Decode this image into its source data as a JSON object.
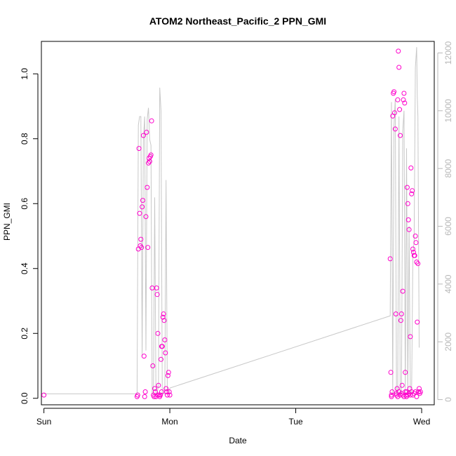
{
  "chart_data": {
    "type": "scatter",
    "title": "ATOM2 Northeast_Pacific_2 PPN_GMI",
    "xlabel": "Date",
    "ylabel": "PPN_GMI",
    "y2label": "",
    "x_unit": "days",
    "xlim": [
      -0.02,
      3.1
    ],
    "ylim": [
      -0.02,
      1.1
    ],
    "y2lim": [
      -180,
      12400
    ],
    "x_ticks": [
      {
        "value": 0,
        "label": "Sun"
      },
      {
        "value": 1,
        "label": "Mon"
      },
      {
        "value": 2,
        "label": "Tue"
      },
      {
        "value": 3,
        "label": "Wed"
      }
    ],
    "y_ticks": [
      0.0,
      0.2,
      0.4,
      0.6,
      0.8,
      1.0
    ],
    "y_tick_labels": [
      "0.0",
      "0.2",
      "0.4",
      "0.6",
      "0.8",
      "1.0"
    ],
    "y2_ticks": [
      0,
      2000,
      4000,
      6000,
      8000,
      10000,
      12000
    ],
    "y2_tick_labels": [
      "0",
      "2000",
      "4000",
      "6000",
      "8000",
      "10000",
      "12000"
    ],
    "grid": false,
    "series": [
      {
        "color": "#ff00cc",
        "marker": "open-circle",
        "points": [
          [
            0.0,
            0.01
          ],
          [
            0.74,
            0.005
          ],
          [
            0.745,
            0.01
          ],
          [
            0.75,
            0.46
          ],
          [
            0.755,
            0.77
          ],
          [
            0.76,
            0.57
          ],
          [
            0.765,
            0.47
          ],
          [
            0.77,
            0.49
          ],
          [
            0.775,
            0.465
          ],
          [
            0.78,
            0.59
          ],
          [
            0.785,
            0.61
          ],
          [
            0.79,
            0.81
          ],
          [
            0.795,
            0.13
          ],
          [
            0.8,
            0.005
          ],
          [
            0.805,
            0.02
          ],
          [
            0.81,
            0.56
          ],
          [
            0.815,
            0.82
          ],
          [
            0.82,
            0.65
          ],
          [
            0.825,
            0.465
          ],
          [
            0.83,
            0.725
          ],
          [
            0.835,
            0.74
          ],
          [
            0.84,
            0.73
          ],
          [
            0.845,
            0.745
          ],
          [
            0.85,
            0.75
          ],
          [
            0.855,
            0.855
          ],
          [
            0.86,
            0.34
          ],
          [
            0.865,
            0.1
          ],
          [
            0.87,
            0.01
          ],
          [
            0.875,
            0.005
          ],
          [
            0.88,
            0.03
          ],
          [
            0.885,
            0.02
          ],
          [
            0.89,
            0.005
          ],
          [
            0.895,
            0.34
          ],
          [
            0.9,
            0.32
          ],
          [
            0.905,
            0.2
          ],
          [
            0.91,
            0.04
          ],
          [
            0.915,
            0.01
          ],
          [
            0.92,
            0.005
          ],
          [
            0.925,
            0.01
          ],
          [
            0.93,
            0.12
          ],
          [
            0.935,
            0.16
          ],
          [
            0.94,
            0.16
          ],
          [
            0.945,
            0.25
          ],
          [
            0.95,
            0.26
          ],
          [
            0.955,
            0.24
          ],
          [
            0.96,
            0.18
          ],
          [
            0.965,
            0.14
          ],
          [
            0.97,
            0.03
          ],
          [
            0.975,
            0.02
          ],
          [
            0.98,
            0.01
          ],
          [
            0.985,
            0.07
          ],
          [
            0.99,
            0.08
          ],
          [
            0.995,
            0.02
          ],
          [
            1.0,
            0.01
          ],
          [
            0.905,
            0.01
          ],
          [
            0.935,
            0.02
          ],
          [
            2.75,
            0.43
          ],
          [
            2.755,
            0.08
          ],
          [
            2.76,
            0.01
          ],
          [
            2.765,
            0.02
          ],
          [
            2.77,
            0.87
          ],
          [
            2.775,
            0.94
          ],
          [
            2.78,
            0.945
          ],
          [
            2.785,
            0.88
          ],
          [
            2.79,
            0.83
          ],
          [
            2.795,
            0.26
          ],
          [
            2.8,
            0.01
          ],
          [
            2.805,
            0.03
          ],
          [
            2.81,
            0.92
          ],
          [
            2.815,
            1.07
          ],
          [
            2.82,
            1.02
          ],
          [
            2.825,
            0.89
          ],
          [
            2.83,
            0.81
          ],
          [
            2.835,
            0.24
          ],
          [
            2.84,
            0.26
          ],
          [
            2.845,
            0.04
          ],
          [
            2.85,
            0.33
          ],
          [
            2.855,
            0.92
          ],
          [
            2.86,
            0.94
          ],
          [
            2.865,
            0.91
          ],
          [
            2.87,
            0.08
          ],
          [
            2.875,
            0.01
          ],
          [
            2.88,
            0.02
          ],
          [
            2.885,
            0.65
          ],
          [
            2.89,
            0.6
          ],
          [
            2.895,
            0.55
          ],
          [
            2.9,
            0.52
          ],
          [
            2.905,
            0.03
          ],
          [
            2.91,
            0.19
          ],
          [
            2.915,
            0.71
          ],
          [
            2.92,
            0.63
          ],
          [
            2.925,
            0.64
          ],
          [
            2.93,
            0.46
          ],
          [
            2.935,
            0.45
          ],
          [
            2.94,
            0.44
          ],
          [
            2.945,
            0.44
          ],
          [
            2.95,
            0.5
          ],
          [
            2.955,
            0.48
          ],
          [
            2.96,
            0.42
          ],
          [
            2.965,
            0.235
          ],
          [
            2.97,
            0.415
          ],
          [
            2.975,
            0.02
          ],
          [
            2.98,
            0.03
          ],
          [
            2.985,
            0.015
          ],
          [
            2.99,
            0.02
          ],
          [
            2.85,
            0.01
          ],
          [
            2.86,
            0.005
          ],
          [
            2.87,
            0.02
          ],
          [
            2.88,
            0.005
          ],
          [
            2.89,
            0.01
          ],
          [
            2.9,
            0.015
          ],
          [
            2.91,
            0.01
          ],
          [
            2.92,
            0.02
          ],
          [
            2.93,
            0.01
          ],
          [
            2.94,
            0.015
          ],
          [
            2.95,
            0.02
          ],
          [
            2.96,
            0.005
          ],
          [
            2.8,
            0.015
          ],
          [
            2.81,
            0.005
          ],
          [
            2.82,
            0.02
          ],
          [
            2.83,
            0.01
          ],
          [
            2.84,
            0.015
          ],
          [
            2.76,
            0.005
          ]
        ]
      },
      {
        "color": "#c8c8c8",
        "marker": "line",
        "axis": "right",
        "points": [
          [
            0.0,
            200
          ],
          [
            0.74,
            200
          ],
          [
            0.75,
            9500
          ],
          [
            0.76,
            9800
          ],
          [
            0.77,
            9800
          ],
          [
            0.78,
            1500
          ],
          [
            0.79,
            9000
          ],
          [
            0.8,
            9800
          ],
          [
            0.81,
            1700
          ],
          [
            0.82,
            9700
          ],
          [
            0.83,
            10100
          ],
          [
            0.84,
            9000
          ],
          [
            0.85,
            8800
          ],
          [
            0.86,
            200
          ],
          [
            0.87,
            200
          ],
          [
            0.88,
            7000
          ],
          [
            0.89,
            200
          ],
          [
            0.9,
            200
          ],
          [
            0.91,
            500
          ],
          [
            0.92,
            10800
          ],
          [
            0.93,
            10000
          ],
          [
            0.94,
            200
          ],
          [
            0.95,
            200
          ],
          [
            0.96,
            200
          ],
          [
            0.97,
            7600
          ],
          [
            0.98,
            200
          ],
          [
            0.99,
            200
          ],
          [
            1.0,
            400
          ],
          [
            1.0,
            400
          ],
          [
            2.75,
            2900
          ],
          [
            2.76,
            10300
          ],
          [
            2.77,
            200
          ],
          [
            2.78,
            9500
          ],
          [
            2.79,
            10400
          ],
          [
            2.8,
            200
          ],
          [
            2.81,
            200
          ],
          [
            2.82,
            9800
          ],
          [
            2.83,
            200
          ],
          [
            2.84,
            200
          ],
          [
            2.85,
            9300
          ],
          [
            2.86,
            10000
          ],
          [
            2.87,
            200
          ],
          [
            2.88,
            8700
          ],
          [
            2.89,
            200
          ],
          [
            2.9,
            6000
          ],
          [
            2.91,
            200
          ],
          [
            2.92,
            200
          ],
          [
            2.93,
            5000
          ],
          [
            2.94,
            5500
          ],
          [
            2.95,
            11500
          ],
          [
            2.96,
            12200
          ],
          [
            2.965,
            10500
          ],
          [
            2.97,
            9800
          ],
          [
            2.98,
            1800
          ]
        ]
      }
    ]
  }
}
